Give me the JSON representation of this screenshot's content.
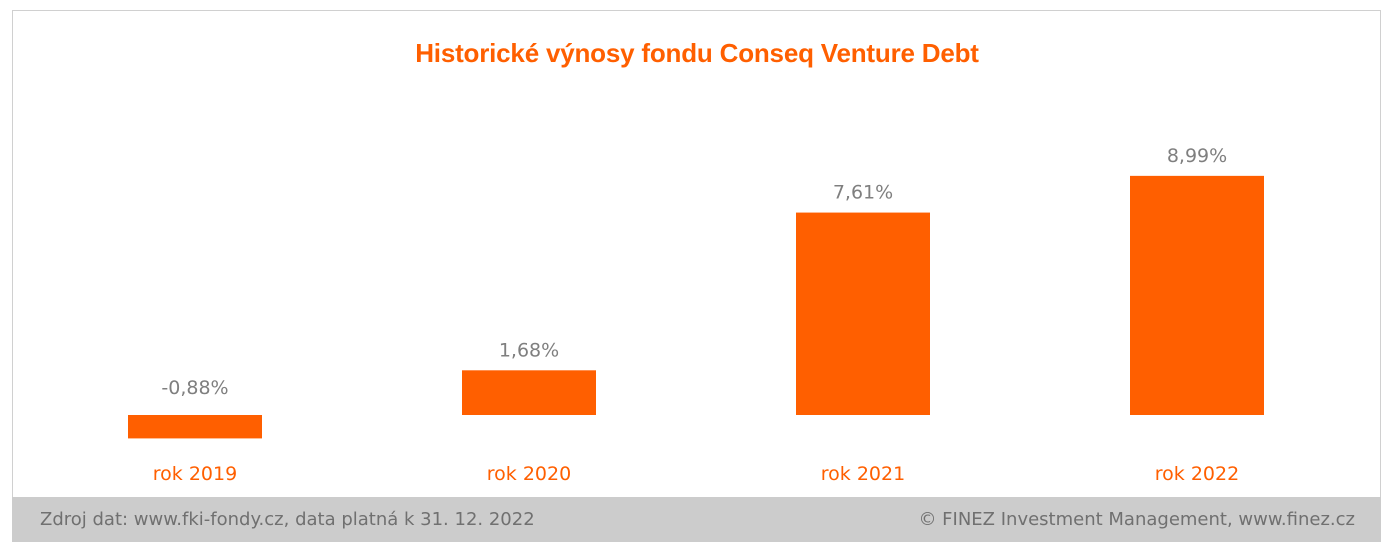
{
  "chart_data": {
    "type": "bar",
    "title": "Historické výnosy fondu Conseq Venture Debt",
    "categories": [
      "rok 2019",
      "rok 2020",
      "rok 2021",
      "rok 2022"
    ],
    "values": [
      -0.88,
      1.68,
      7.61,
      8.99
    ],
    "data_labels": [
      "-0,88%",
      "1,68%",
      "7,61%",
      "8,99%"
    ],
    "xlabel": "",
    "ylabel": "",
    "unit": "%",
    "grid": false,
    "legend": "none",
    "bar_color": "#ff5f00"
  },
  "footer": {
    "source": "Zdroj dat: www.fki-fondy.cz, data platná k 31. 12. 2022",
    "copyright": "© FINEZ Investment Management, www.finez.cz"
  }
}
